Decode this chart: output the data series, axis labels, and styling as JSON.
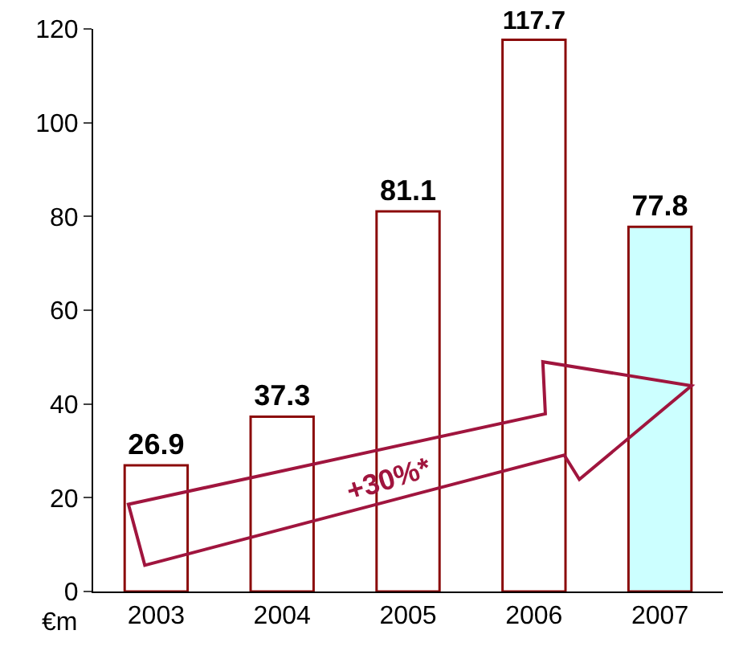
{
  "chart_data": {
    "type": "bar",
    "categories": [
      "2003",
      "2004",
      "2005",
      "2006",
      "2007"
    ],
    "values": [
      26.9,
      37.3,
      81.1,
      117.7,
      77.8
    ],
    "colors": [
      "#ffffff",
      "#ffffff",
      "#ffffff",
      "#ffffff",
      "#ccffff"
    ],
    "data_labels": true,
    "ylim": [
      0,
      120
    ],
    "yticks": [
      0,
      20,
      40,
      60,
      80,
      100,
      120
    ],
    "ylabel": "€m",
    "annotations": [
      "+30%*"
    ]
  }
}
